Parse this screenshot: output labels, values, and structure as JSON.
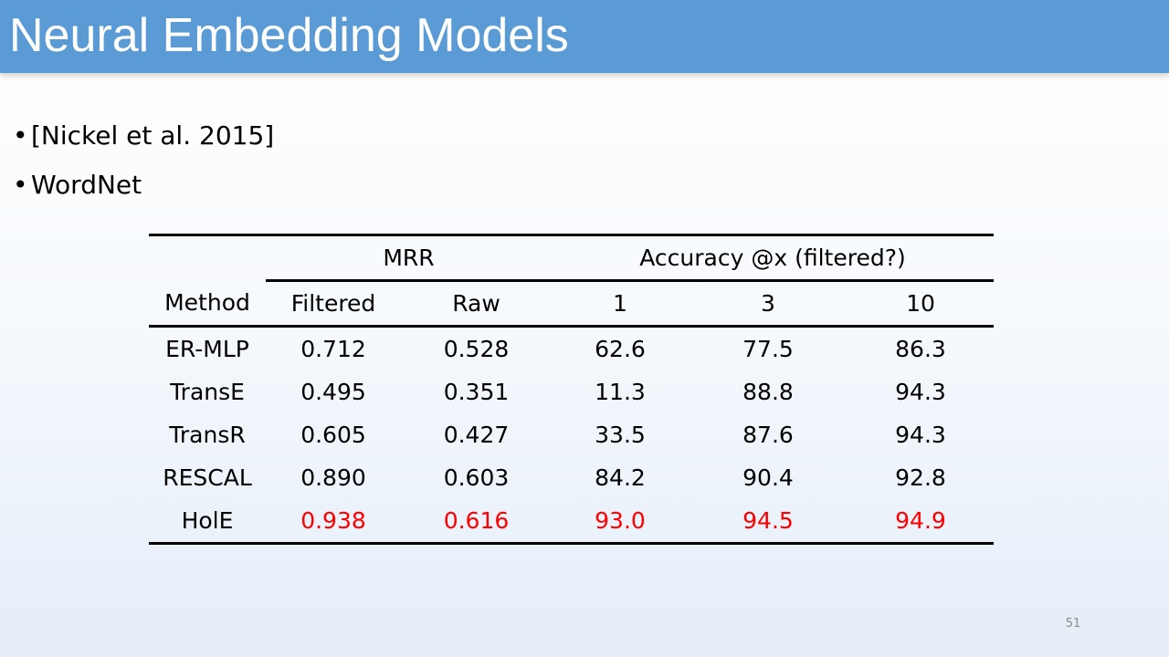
{
  "slide": {
    "title": "Neural Embedding Models",
    "bullets": [
      "[Nickel et al. 2015]",
      "WordNet"
    ],
    "bullet_glyph": "•",
    "slide_number": "51",
    "highlight_color": "#ff0000",
    "title_bar_color": "#5b9bd5"
  },
  "table": {
    "group_headers": {
      "mrr": "MRR",
      "accuracy": "Accuracy @x (filtered?)"
    },
    "columns": [
      "Method",
      "Filtered",
      "Raw",
      "1",
      "3",
      "10"
    ],
    "rows": [
      {
        "method": "ER-MLP",
        "values": [
          "0.712",
          "0.528",
          "62.6",
          "77.5",
          "86.3"
        ],
        "highlight": false
      },
      {
        "method": "TransE",
        "values": [
          "0.495",
          "0.351",
          "11.3",
          "88.8",
          "94.3"
        ],
        "highlight": false
      },
      {
        "method": "TransR",
        "values": [
          "0.605",
          "0.427",
          "33.5",
          "87.6",
          "94.3"
        ],
        "highlight": false
      },
      {
        "method": "RESCAL",
        "values": [
          "0.890",
          "0.603",
          "84.2",
          "90.4",
          "92.8"
        ],
        "highlight": false
      },
      {
        "method": "HolE",
        "values": [
          "0.938",
          "0.616",
          "93.0",
          "94.5",
          "94.9"
        ],
        "highlight": true
      }
    ]
  }
}
